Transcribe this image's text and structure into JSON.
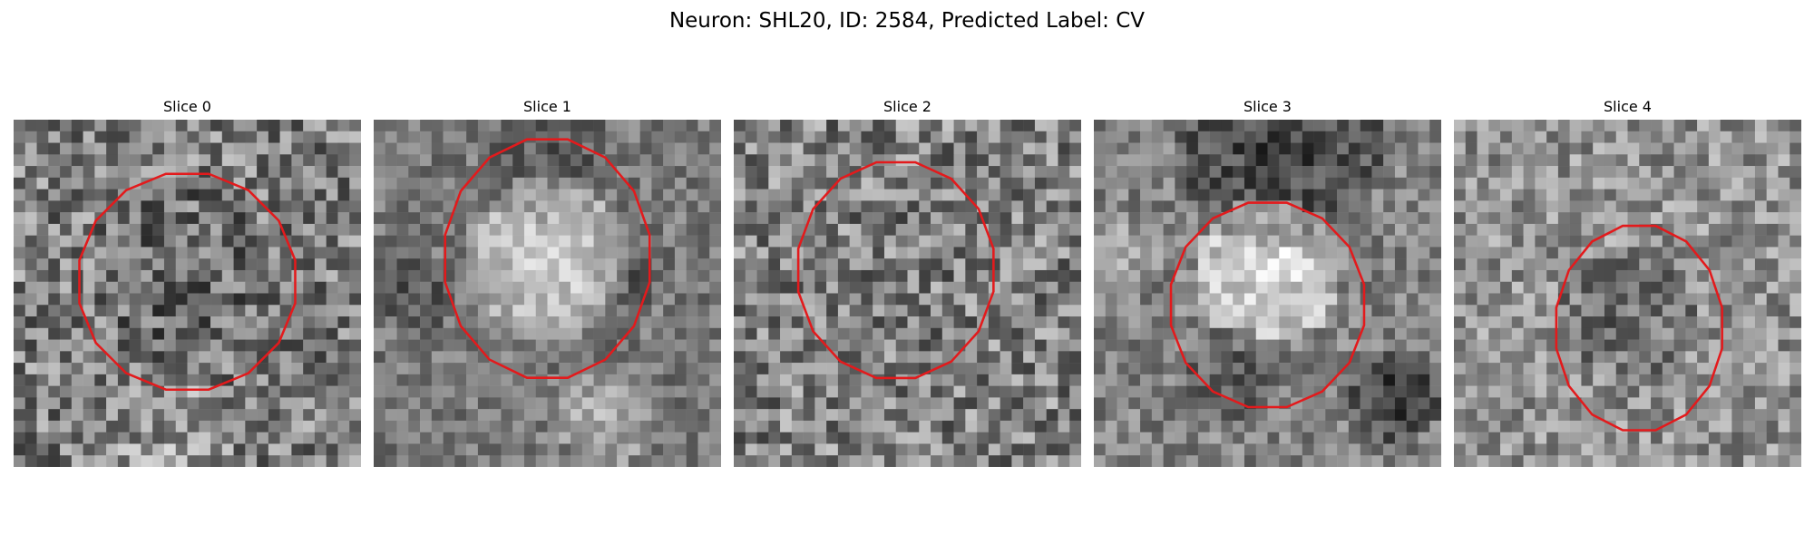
{
  "figure": {
    "title": "Neuron: SHL20, ID: 2584, Predicted Label: CV"
  },
  "panels": [
    {
      "title": "Slice 0"
    },
    {
      "title": "Slice 1"
    },
    {
      "title": "Slice 2"
    },
    {
      "title": "Slice 3"
    },
    {
      "title": "Slice 4"
    }
  ],
  "colors": {
    "contour": "#e31a1c",
    "background": "#ffffff"
  }
}
